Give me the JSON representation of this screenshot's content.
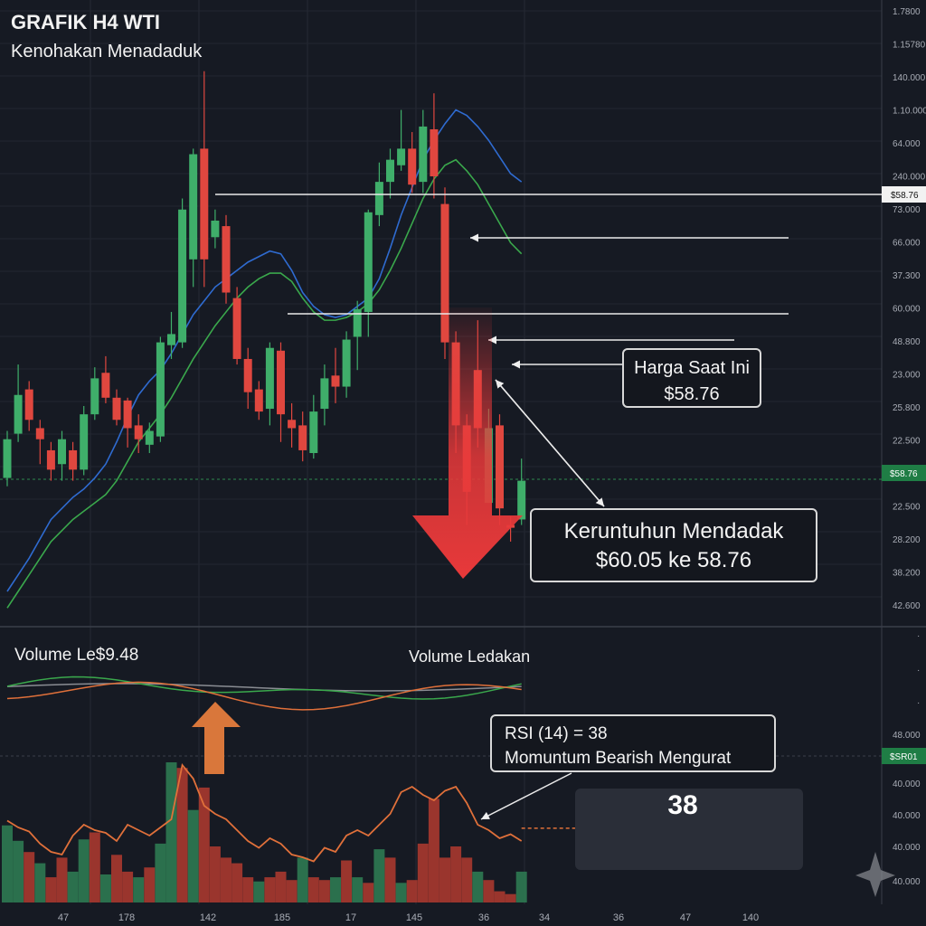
{
  "header": {
    "title": "GRAFIK H4 WTI",
    "subtitle": "Kenohakan Menadaduk"
  },
  "annotations": {
    "current_price_label": "Harga Saat Ini",
    "current_price_value": "$58.76",
    "crash_title": "Keruntuhun Mendadak",
    "crash_detail": "$60.05 ke 58.76",
    "volume_label": "Volume Le$9.48",
    "volume_burst_label": "Volume Ledakan",
    "rsi_line1": "RSI (14) = 38",
    "rsi_line2": "Momuntum Bearish Mengurat",
    "rsi_value": "38",
    "price_tag": "$58.76",
    "price_tag_lower": "$58.76",
    "rsi_tag": "$SR01"
  },
  "colors": {
    "background": "#161a23",
    "bull": "#3fae6a",
    "bear": "#e0473f",
    "ma_blue": "#2f6bd0",
    "ma_green": "#3aa84c",
    "rsi_orange": "#e0703a",
    "arrow_red": "#e8393a",
    "arrow_orange": "#d9773b"
  },
  "chart_data": {
    "type": "candlestick",
    "title": "GRAFIK H4 WTI",
    "y_axis_ticks": [
      "1.7800",
      "1.15780",
      "140.000",
      "1.10.000",
      "64.000",
      "240.000",
      "73.000",
      "66.000",
      "37.300",
      "60.000",
      "48.800",
      "23.000",
      "25.800",
      "22.500",
      "$58.76",
      "22.500",
      "28.200",
      "38.200",
      "42.600"
    ],
    "lower_y_axis_ticks": [
      "48.000",
      "40.000",
      "40.000",
      "40.000",
      "40.000"
    ],
    "x_axis_ticks": [
      "47",
      "178",
      "142",
      "185",
      "17",
      "145",
      "36",
      "34",
      "36",
      "47",
      "140"
    ],
    "candles": [
      {
        "o": 20.5,
        "c": 27.5,
        "h": 29,
        "l": 19
      },
      {
        "o": 28.5,
        "c": 35.5,
        "h": 41,
        "l": 27
      },
      {
        "o": 36.5,
        "c": 31,
        "h": 38,
        "l": 29
      },
      {
        "o": 29.5,
        "c": 27.5,
        "h": 31,
        "l": 23
      },
      {
        "o": 25.5,
        "c": 22,
        "h": 27,
        "l": 20
      },
      {
        "o": 23,
        "c": 27.5,
        "h": 29,
        "l": 20
      },
      {
        "o": 25.5,
        "c": 22,
        "h": 27,
        "l": 20
      },
      {
        "o": 22,
        "c": 32,
        "h": 33.5,
        "l": 21
      },
      {
        "o": 32,
        "c": 38.5,
        "h": 40.5,
        "l": 31
      },
      {
        "o": 39.5,
        "c": 35,
        "h": 42.5,
        "l": 34
      },
      {
        "o": 35,
        "c": 31,
        "h": 36.5,
        "l": 30
      },
      {
        "o": 34.5,
        "c": 29.5,
        "h": 35,
        "l": 26
      },
      {
        "o": 30,
        "c": 27.5,
        "h": 32,
        "l": 25
      },
      {
        "o": 26.5,
        "c": 29,
        "h": 30.5,
        "l": 25
      },
      {
        "o": 28,
        "c": 45,
        "h": 46,
        "l": 27
      },
      {
        "o": 44.5,
        "c": 46.5,
        "h": 50.5,
        "l": 42
      },
      {
        "o": 45,
        "c": 69,
        "h": 71,
        "l": 44
      },
      {
        "o": 60,
        "c": 79,
        "h": 80,
        "l": 55
      },
      {
        "o": 80,
        "c": 60,
        "h": 94,
        "l": 55
      },
      {
        "o": 64,
        "c": 67,
        "h": 69,
        "l": 62
      },
      {
        "o": 66,
        "c": 54,
        "h": 68,
        "l": 52
      },
      {
        "o": 53,
        "c": 42,
        "h": 55,
        "l": 41
      },
      {
        "o": 42,
        "c": 36,
        "h": 44,
        "l": 33
      },
      {
        "o": 36.5,
        "c": 32.5,
        "h": 38,
        "l": 31
      },
      {
        "o": 33,
        "c": 44,
        "h": 45,
        "l": 30
      },
      {
        "o": 43.5,
        "c": 32,
        "h": 45,
        "l": 27
      },
      {
        "o": 31,
        "c": 29.5,
        "h": 34,
        "l": 26
      },
      {
        "o": 30,
        "c": 25.5,
        "h": 32.5,
        "l": 23.5
      },
      {
        "o": 25,
        "c": 32.5,
        "h": 35.5,
        "l": 24
      },
      {
        "o": 33,
        "c": 38.5,
        "h": 41,
        "l": 30
      },
      {
        "o": 39,
        "c": 37,
        "h": 44,
        "l": 34
      },
      {
        "o": 37,
        "c": 45.5,
        "h": 47,
        "l": 35
      },
      {
        "o": 46,
        "c": 51,
        "h": 52.5,
        "l": 40
      },
      {
        "o": 50.5,
        "c": 68.5,
        "h": 69,
        "l": 46
      },
      {
        "o": 68,
        "c": 74,
        "h": 77.5,
        "l": 66
      },
      {
        "o": 74,
        "c": 78,
        "h": 80,
        "l": 71
      },
      {
        "o": 77,
        "c": 80,
        "h": 87,
        "l": 76
      },
      {
        "o": 80,
        "c": 73.5,
        "h": 83,
        "l": 72
      },
      {
        "o": 74,
        "c": 84,
        "h": 87,
        "l": 72
      },
      {
        "o": 83.5,
        "c": 75,
        "h": 90,
        "l": 71
      },
      {
        "o": 70,
        "c": 45,
        "h": 73,
        "l": 42
      },
      {
        "o": 45,
        "c": 30,
        "h": 47,
        "l": 25
      },
      {
        "o": 30,
        "c": 18,
        "h": 32,
        "l": 12
      },
      {
        "o": 40,
        "c": 29.5,
        "h": 49,
        "l": 26
      },
      {
        "o": 16,
        "c": 29.5,
        "h": 33,
        "l": 16
      },
      {
        "o": 30,
        "c": 15,
        "h": 32,
        "l": 12
      },
      {
        "o": 12,
        "c": 11.5,
        "h": 13.5,
        "l": 9
      },
      {
        "o": 13,
        "c": 20,
        "h": 24,
        "l": 12
      }
    ],
    "ma_blue": [
      0,
      3,
      6,
      9.5,
      13,
      15,
      17,
      18.5,
      20.5,
      23,
      27,
      31.5,
      35.5,
      38,
      40,
      43,
      46.5,
      50,
      52.5,
      55,
      56.5,
      58,
      59.5,
      60.5,
      61.5,
      61,
      58,
      54,
      51.5,
      50,
      49.5,
      50,
      51.5,
      53,
      56.5,
      62,
      68,
      73,
      78,
      81.5,
      84.5,
      87,
      86,
      84,
      81.5,
      78.5,
      75.5,
      74
    ],
    "ma_green": [
      -3,
      0,
      3,
      6,
      9,
      11,
      13,
      14.5,
      16,
      17.5,
      20,
      23.5,
      27,
      29.5,
      32,
      35,
      38.5,
      42,
      45,
      48,
      50.5,
      53,
      55,
      56.5,
      57.5,
      57.5,
      56,
      53,
      50.5,
      49,
      49,
      49.5,
      50.5,
      52,
      54.5,
      58,
      62,
      66.5,
      71,
      74.5,
      77,
      78,
      76,
      73.5,
      70,
      66.5,
      63,
      61
    ],
    "volume": [
      {
        "v": 55,
        "bull": true
      },
      {
        "v": 44,
        "bull": true
      },
      {
        "v": 36,
        "bear": true
      },
      {
        "v": 28,
        "bull": true
      },
      {
        "v": 18,
        "bear": true
      },
      {
        "v": 32,
        "bear": true
      },
      {
        "v": 22,
        "bull": true
      },
      {
        "v": 45,
        "bull": true
      },
      {
        "v": 50,
        "bear": true
      },
      {
        "v": 20,
        "bull": true
      },
      {
        "v": 34,
        "bear": true
      },
      {
        "v": 22,
        "bear": true
      },
      {
        "v": 18,
        "bull": true
      },
      {
        "v": 25,
        "bear": true
      },
      {
        "v": 42,
        "bull": true
      },
      {
        "v": 100,
        "bull": true
      },
      {
        "v": 96,
        "bear": true
      },
      {
        "v": 66,
        "bull": true
      },
      {
        "v": 82,
        "bear": true
      },
      {
        "v": 40,
        "bear": true
      },
      {
        "v": 32,
        "bear": true
      },
      {
        "v": 28,
        "bear": true
      },
      {
        "v": 18,
        "bear": true
      },
      {
        "v": 15,
        "bull": true
      },
      {
        "v": 18,
        "bear": true
      },
      {
        "v": 22,
        "bear": true
      },
      {
        "v": 16,
        "bear": true
      },
      {
        "v": 32,
        "bull": true
      },
      {
        "v": 18,
        "bear": true
      },
      {
        "v": 16,
        "bear": true
      },
      {
        "v": 18,
        "bull": true
      },
      {
        "v": 30,
        "bear": true
      },
      {
        "v": 18,
        "bull": true
      },
      {
        "v": 14,
        "bear": true
      },
      {
        "v": 38,
        "bull": true
      },
      {
        "v": 32,
        "bear": true
      },
      {
        "v": 14,
        "bull": true
      },
      {
        "v": 16,
        "bear": true
      },
      {
        "v": 42,
        "bear": true
      },
      {
        "v": 74,
        "bear": true
      },
      {
        "v": 32,
        "bear": true
      },
      {
        "v": 40,
        "bear": true
      },
      {
        "v": 32,
        "bear": true
      },
      {
        "v": 22,
        "bull": true
      },
      {
        "v": 16,
        "bear": true
      },
      {
        "v": 8,
        "bear": true
      },
      {
        "v": 6,
        "bear": true
      },
      {
        "v": 22,
        "bull": true
      }
    ],
    "rsi_line": [
      55,
      50,
      47,
      38,
      32,
      30,
      44,
      52,
      48,
      46,
      40,
      52,
      48,
      44,
      50,
      56,
      96,
      86,
      66,
      60,
      56,
      48,
      40,
      35,
      42,
      38,
      30,
      28,
      25,
      35,
      32,
      44,
      48,
      44,
      52,
      60,
      76,
      80,
      74,
      70,
      77,
      80,
      68,
      52,
      48,
      42,
      45,
      40
    ],
    "rsi_level": 38
  }
}
